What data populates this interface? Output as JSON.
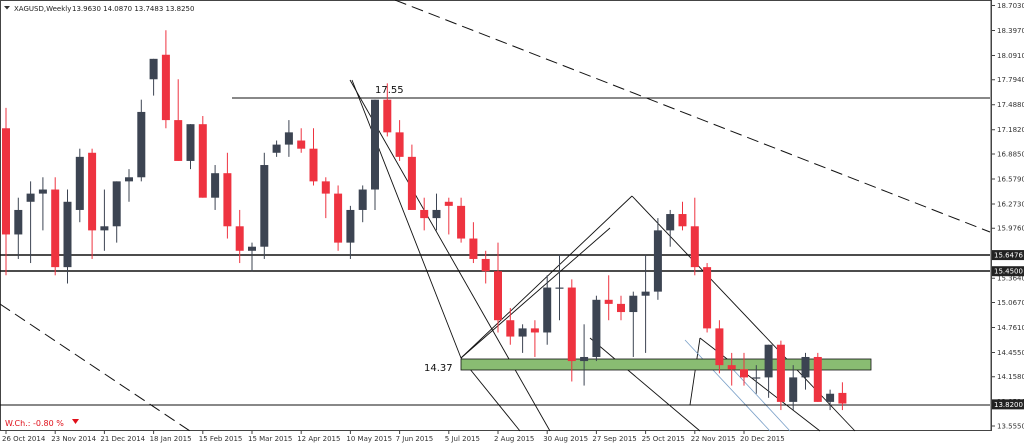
{
  "header": {
    "symbol": "XAGUSD,Weekly",
    "ohlc": "13.9630 14.0870 13.7483 13.8250"
  },
  "footer": {
    "change_label": "W.Ch.: -0.80 %"
  },
  "annotations": {
    "level_high": "17.55",
    "level_low": "14.37"
  },
  "colors": {
    "bull": "#3c4452",
    "bear": "#ee3340",
    "support_zone": "#89bc72",
    "current_price_box": "#222222",
    "change_text": "#e0101a"
  },
  "chart_data": {
    "type": "candlestick",
    "title": "XAGUSD,Weekly",
    "y_ticks": [
      "18.7030",
      "18.3970",
      "18.0910",
      "17.7940",
      "17.4880",
      "17.1820",
      "16.8850",
      "16.5790",
      "16.2730",
      "15.9760",
      "15.6700",
      "15.3640",
      "15.0670",
      "14.7610",
      "14.4550",
      "14.1580",
      "13.8520",
      "13.5550"
    ],
    "ylim": [
      13.555,
      18.703
    ],
    "x_ticks": [
      {
        "label": "26 Oct 2014",
        "i": 0
      },
      {
        "label": "23 Nov 2014",
        "i": 4
      },
      {
        "label": "21 Dec 2014",
        "i": 8
      },
      {
        "label": "18 Jan 2015",
        "i": 12
      },
      {
        "label": "15 Feb 2015",
        "i": 16
      },
      {
        "label": "15 Mar 2015",
        "i": 20
      },
      {
        "label": "12 Apr 2015",
        "i": 24
      },
      {
        "label": "10 May 2015",
        "i": 28
      },
      {
        "label": "7 Jun 2015",
        "i": 32
      },
      {
        "label": "5 Jul 2015",
        "i": 36
      },
      {
        "label": "2 Aug 2015",
        "i": 40
      },
      {
        "label": "30 Aug 2015",
        "i": 44
      },
      {
        "label": "27 Sep 2015",
        "i": 48
      },
      {
        "label": "25 Oct 2015",
        "i": 52
      },
      {
        "label": "22 Nov 2015",
        "i": 56
      },
      {
        "label": "20 Dec 2015",
        "i": 60
      }
    ],
    "candles": [
      [
        17.2,
        17.45,
        15.4,
        15.9
      ],
      [
        15.9,
        16.35,
        15.6,
        16.2
      ],
      [
        16.3,
        16.55,
        15.55,
        16.4
      ],
      [
        16.4,
        16.6,
        15.95,
        16.45
      ],
      [
        16.45,
        16.6,
        15.4,
        15.5
      ],
      [
        15.5,
        16.45,
        15.3,
        16.3
      ],
      [
        16.2,
        16.95,
        16.05,
        16.85
      ],
      [
        16.9,
        16.95,
        15.6,
        15.95
      ],
      [
        15.95,
        16.45,
        15.7,
        16.0
      ],
      [
        16.0,
        16.55,
        15.8,
        16.55
      ],
      [
        16.55,
        16.7,
        16.3,
        16.6
      ],
      [
        16.6,
        17.55,
        16.55,
        17.4
      ],
      [
        17.8,
        18.05,
        17.6,
        18.05
      ],
      [
        18.1,
        18.4,
        17.2,
        17.3
      ],
      [
        17.3,
        17.8,
        16.8,
        16.8
      ],
      [
        16.8,
        17.25,
        16.7,
        17.25
      ],
      [
        17.25,
        17.35,
        16.35,
        16.35
      ],
      [
        16.35,
        16.75,
        16.2,
        16.65
      ],
      [
        16.65,
        16.9,
        15.85,
        16.0
      ],
      [
        16.0,
        16.2,
        15.55,
        15.7
      ],
      [
        15.7,
        15.8,
        15.45,
        15.75
      ],
      [
        15.75,
        16.9,
        15.6,
        16.75
      ],
      [
        16.9,
        17.05,
        16.85,
        17.0
      ],
      [
        17.0,
        17.3,
        16.85,
        17.15
      ],
      [
        17.05,
        17.2,
        16.9,
        16.95
      ],
      [
        16.95,
        17.2,
        16.5,
        16.55
      ],
      [
        16.55,
        16.6,
        16.1,
        16.4
      ],
      [
        16.4,
        16.5,
        15.7,
        15.8
      ],
      [
        15.8,
        16.25,
        15.6,
        16.2
      ],
      [
        16.2,
        16.5,
        16.05,
        16.45
      ],
      [
        16.45,
        17.55,
        16.2,
        17.55
      ],
      [
        17.55,
        17.75,
        17.1,
        17.15
      ],
      [
        17.15,
        17.3,
        16.8,
        16.85
      ],
      [
        16.85,
        17.0,
        16.2,
        16.2
      ],
      [
        16.2,
        16.35,
        15.95,
        16.1
      ],
      [
        16.1,
        16.4,
        15.95,
        16.2
      ],
      [
        16.3,
        16.35,
        15.9,
        16.25
      ],
      [
        16.25,
        16.35,
        15.8,
        15.85
      ],
      [
        15.85,
        16.05,
        15.55,
        15.6
      ],
      [
        15.6,
        15.7,
        15.3,
        15.45
      ],
      [
        15.45,
        15.8,
        14.7,
        14.85
      ],
      [
        14.85,
        15.0,
        14.55,
        14.65
      ],
      [
        14.65,
        14.8,
        14.45,
        14.75
      ],
      [
        14.75,
        14.85,
        14.4,
        14.7
      ],
      [
        14.7,
        15.4,
        14.55,
        15.25
      ],
      [
        15.25,
        15.65,
        14.85,
        15.25
      ],
      [
        15.25,
        15.35,
        14.1,
        14.35
      ],
      [
        14.35,
        14.8,
        14.05,
        14.4
      ],
      [
        14.4,
        15.15,
        14.35,
        15.1
      ],
      [
        15.1,
        15.4,
        14.85,
        15.05
      ],
      [
        15.05,
        15.15,
        14.85,
        14.95
      ],
      [
        14.95,
        15.2,
        14.4,
        15.15
      ],
      [
        15.15,
        15.65,
        14.45,
        15.2
      ],
      [
        15.2,
        16.1,
        15.1,
        15.95
      ],
      [
        15.95,
        16.2,
        15.75,
        16.15
      ],
      [
        16.15,
        16.3,
        15.95,
        16.0
      ],
      [
        16.0,
        16.35,
        15.4,
        15.5
      ],
      [
        15.5,
        15.55,
        14.7,
        14.75
      ],
      [
        14.75,
        14.85,
        14.2,
        14.3
      ],
      [
        14.3,
        14.45,
        14.05,
        14.25
      ],
      [
        14.25,
        14.45,
        14.05,
        14.15
      ],
      [
        14.15,
        14.3,
        13.95,
        14.15
      ],
      [
        14.15,
        14.55,
        13.9,
        14.55
      ],
      [
        14.55,
        14.6,
        13.75,
        13.85
      ],
      [
        13.85,
        14.3,
        13.75,
        14.15
      ],
      [
        14.15,
        14.45,
        14.0,
        14.4
      ],
      [
        14.4,
        14.45,
        13.85,
        13.85
      ],
      [
        13.85,
        14.0,
        13.75,
        13.95
      ],
      [
        13.96,
        14.09,
        13.75,
        13.83
      ]
    ]
  },
  "price_labels": [
    {
      "text": "15.6476",
      "value": 15.6476
    },
    {
      "text": "15.4500",
      "value": 15.45
    },
    {
      "text": "13.8200",
      "value": 13.82
    }
  ]
}
